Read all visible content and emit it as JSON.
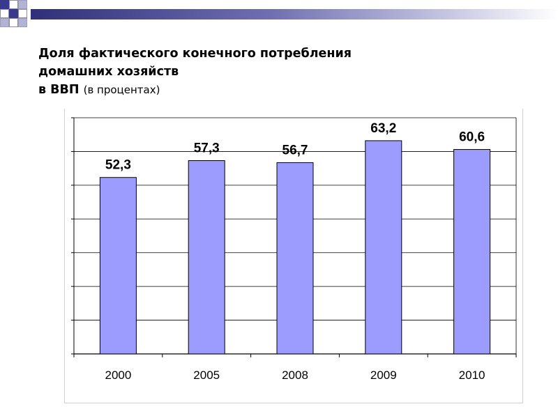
{
  "title": {
    "line1": "Доля фактического конечного потребления",
    "line2": "домашних хозяйств",
    "line3_main": "в ВВП",
    "line3_sub": "(в процентах)"
  },
  "colors": {
    "bar_fill": "#9c9cff",
    "bar_stroke": "#000000",
    "grid": "#000000",
    "header_dark": "#30307a"
  },
  "chart_data": {
    "type": "bar",
    "title": "Доля фактического конечного потребления домашних хозяйств в ВВП (в процентах)",
    "categories": [
      "2000",
      "2005",
      "2008",
      "2009",
      "2010"
    ],
    "values": [
      52.3,
      57.3,
      56.7,
      63.2,
      60.6
    ],
    "value_labels": [
      "52,3",
      "57,3",
      "56,7",
      "63,2",
      "60,6"
    ],
    "xlabel": "",
    "ylabel": "",
    "ylim": [
      0,
      70
    ],
    "grid": true,
    "y_tick_labels_visible": false
  }
}
